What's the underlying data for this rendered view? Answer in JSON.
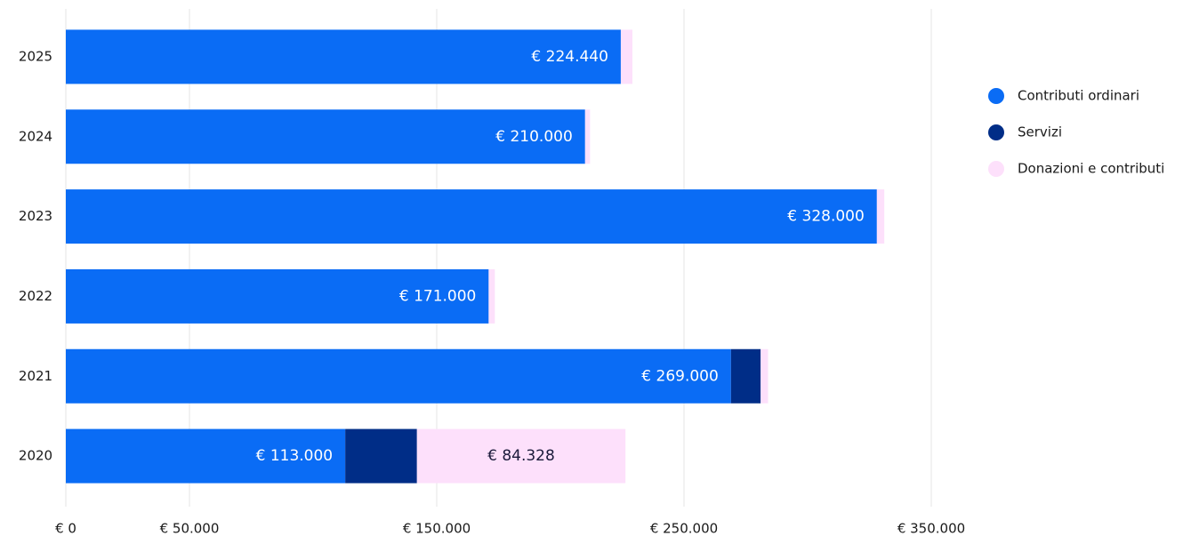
{
  "chart_data": {
    "type": "stacked_barh",
    "categories": [
      "2025",
      "2024",
      "2023",
      "2022",
      "2021",
      "2020"
    ],
    "series": [
      {
        "name": "Contributi ordinari",
        "color": "#0a6cf5",
        "values": [
          224440,
          210000,
          328000,
          171000,
          269000,
          113000
        ],
        "value_labels": [
          "€ 224.440",
          "€ 210.000",
          "€ 328.000",
          "€ 171.000",
          "€ 269.000",
          "€ 113.000"
        ]
      },
      {
        "name": "Servizi",
        "color": "#002d87",
        "values": [
          0,
          0,
          0,
          0,
          12000,
          29000
        ]
      },
      {
        "name": "Donazioni e contributi",
        "color": "#fde0fb",
        "values": [
          4700,
          2000,
          3000,
          2500,
          3000,
          84328
        ],
        "value_labels": [
          null,
          null,
          null,
          null,
          null,
          "€ 84.328"
        ]
      }
    ],
    "xlim": [
      0,
      350000
    ],
    "xticks": [
      {
        "value": 0,
        "label": "€ 0"
      },
      {
        "value": 50000,
        "label": "€ 50.000"
      },
      {
        "value": 150000,
        "label": "€ 150.000"
      },
      {
        "value": 250000,
        "label": "€ 250.000"
      },
      {
        "value": 350000,
        "label": "€ 350.000"
      }
    ],
    "grid": true,
    "legend": "right"
  }
}
